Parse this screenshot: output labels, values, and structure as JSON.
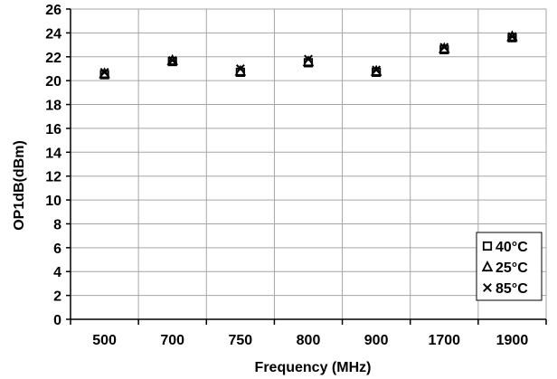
{
  "chart_data": {
    "type": "scatter",
    "title": "",
    "xlabel": "Frequency (MHz)",
    "ylabel": "OP1dB(dBm)",
    "categories": [
      "500",
      "700",
      "750",
      "800",
      "900",
      "1700",
      "1900"
    ],
    "ylim": [
      0,
      26
    ],
    "yticks": [
      "0",
      "2",
      "4",
      "6",
      "8",
      "10",
      "12",
      "14",
      "16",
      "18",
      "20",
      "22",
      "24",
      "26"
    ],
    "grid": true,
    "legend_position": "bottom-right",
    "series": [
      {
        "name": "40°C",
        "marker": "square",
        "values": [
          20.5,
          21.6,
          20.7,
          21.5,
          20.7,
          22.6,
          23.6
        ]
      },
      {
        "name": "25°C",
        "marker": "triangle",
        "values": [
          20.6,
          21.7,
          20.8,
          21.6,
          20.8,
          22.7,
          23.7
        ]
      },
      {
        "name": "85°C",
        "marker": "x",
        "values": [
          20.7,
          21.7,
          21.0,
          21.8,
          20.9,
          22.8,
          23.7
        ]
      }
    ],
    "colors": {
      "marker": "#000000",
      "grid": "#a6a6a6",
      "axis": "#000000"
    }
  }
}
